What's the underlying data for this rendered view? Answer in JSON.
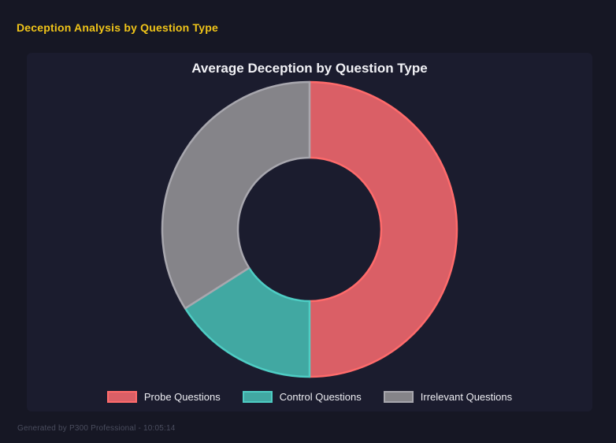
{
  "header": {
    "title": "Deception Analysis by Question Type"
  },
  "chart_data": {
    "type": "pie",
    "variant": "doughnut",
    "title": "Average Deception by Question Type",
    "legend_position": "bottom",
    "start_angle_deg": 0,
    "direction": "clockwise",
    "cutout_ratio": 0.49,
    "categories": [
      "Probe Questions",
      "Control Questions",
      "Irrelevant Questions"
    ],
    "values_percent": [
      50,
      16,
      34
    ],
    "segments": [
      {
        "label": "Probe Questions",
        "percent": 50,
        "fill": "#DA5F66",
        "border": "#FF6B6B"
      },
      {
        "label": "Control Questions",
        "percent": 16,
        "fill": "#41A8A2",
        "border": "#4ECDC4"
      },
      {
        "label": "Irrelevant Questions",
        "percent": 34,
        "fill": "#858489",
        "border": "#A8A7AE"
      }
    ]
  },
  "footer": {
    "text": "Generated by P300 Professional - 10:05:14"
  },
  "colors": {
    "page_bg": "#161724",
    "panel_bg": "#1B1C2E",
    "page_title": "#F0C419",
    "chart_title": "#F2F2F6",
    "legend_text": "#EDEDF2",
    "footer_text": "#4A4D5E"
  }
}
